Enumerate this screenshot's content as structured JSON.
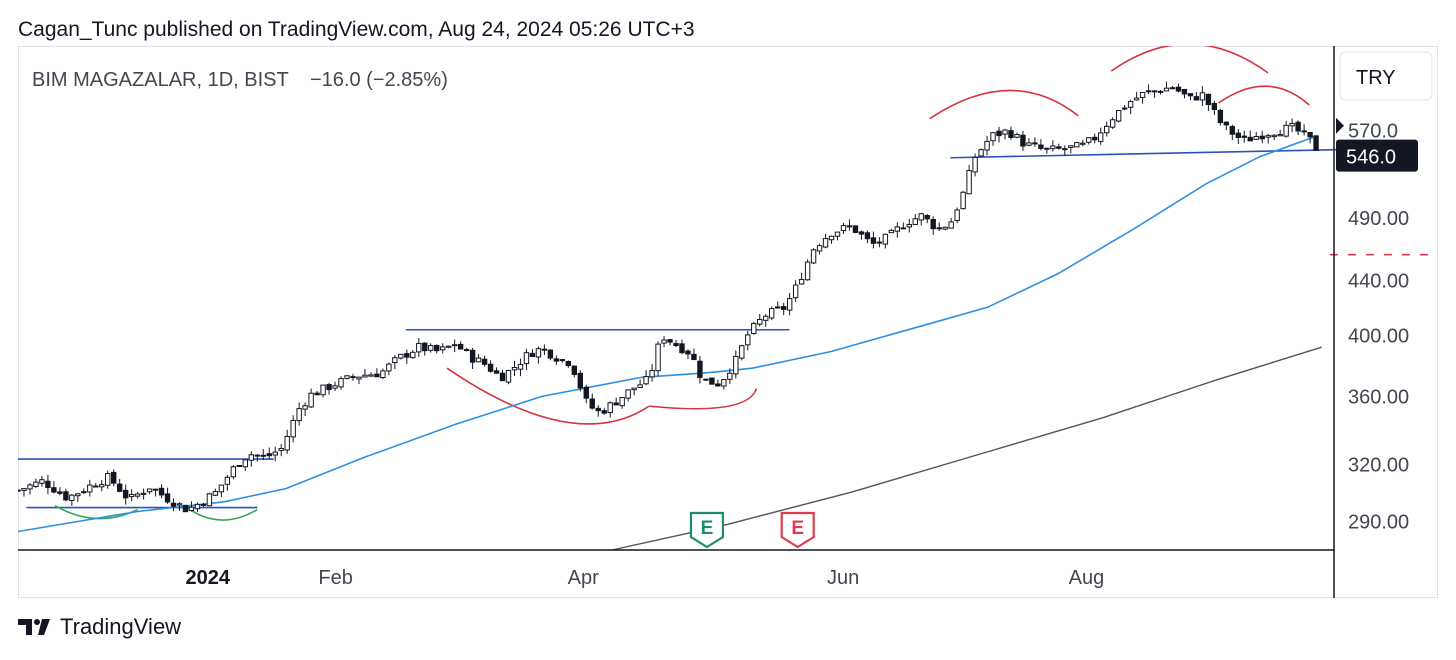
{
  "header": {
    "published": "Cagan_Tunc published on TradingView.com, Aug 24, 2024 05:26 UTC+3"
  },
  "symbol": {
    "text": "BIM MAGAZALAR, 1D, BIST",
    "change": "−16.0 (−2.85%)"
  },
  "currency_button": "TRY",
  "footer": {
    "brand": "TradingView"
  },
  "earnings": [
    {
      "label": "E",
      "date": "2024-05-01",
      "color": "#1e8a6e"
    },
    {
      "label": "E",
      "date": "2024-05-23",
      "color": "#e03a4e"
    }
  ],
  "chart_data": {
    "type": "candlestick",
    "x_axis": {
      "range": [
        "2023-11-16",
        "2024-09-30"
      ],
      "ticks": [
        {
          "label": "2024",
          "date": "2024-01-01",
          "bold": true
        },
        {
          "label": "Feb",
          "date": "2024-02-01"
        },
        {
          "label": "Apr",
          "date": "2024-04-01"
        },
        {
          "label": "Jun",
          "date": "2024-06-03"
        },
        {
          "label": "Aug",
          "date": "2024-08-01"
        }
      ]
    },
    "y_axis": {
      "scale": "log",
      "range": [
        276,
        660
      ],
      "ticks": [
        {
          "label": "570.0",
          "value": 570
        },
        {
          "label": "490.00",
          "value": 490
        },
        {
          "label": "440.00",
          "value": 440
        },
        {
          "label": "400.00",
          "value": 400
        },
        {
          "label": "360.00",
          "value": 360
        },
        {
          "label": "320.00",
          "value": 320
        },
        {
          "label": "290.00",
          "value": 290
        }
      ],
      "current_price": {
        "label": "546.0",
        "value": 546
      }
    },
    "price_path": [
      [
        "2023-11-16",
        306
      ],
      [
        "2023-11-22",
        311
      ],
      [
        "2023-11-28",
        302
      ],
      [
        "2023-12-04",
        309
      ],
      [
        "2023-12-08",
        313
      ],
      [
        "2023-12-13",
        301
      ],
      [
        "2023-12-18",
        308
      ],
      [
        "2023-12-22",
        302
      ],
      [
        "2023-12-27",
        296
      ],
      [
        "2023-12-29",
        298
      ],
      [
        "2024-01-03",
        305
      ],
      [
        "2024-01-08",
        320
      ],
      [
        "2024-01-11",
        326
      ],
      [
        "2024-01-15",
        324
      ],
      [
        "2024-01-19",
        329
      ],
      [
        "2024-01-23",
        352
      ],
      [
        "2024-01-26",
        361
      ],
      [
        "2024-02-01",
        368
      ],
      [
        "2024-02-06",
        373
      ],
      [
        "2024-02-12",
        375
      ],
      [
        "2024-02-16",
        384
      ],
      [
        "2024-02-21",
        392
      ],
      [
        "2024-02-26",
        389
      ],
      [
        "2024-03-01",
        394
      ],
      [
        "2024-03-05",
        385
      ],
      [
        "2024-03-08",
        381
      ],
      [
        "2024-03-12",
        372
      ],
      [
        "2024-03-15",
        378
      ],
      [
        "2024-03-19",
        388
      ],
      [
        "2024-03-22",
        391
      ],
      [
        "2024-03-27",
        383
      ],
      [
        "2024-03-29",
        382
      ],
      [
        "2024-04-02",
        355
      ],
      [
        "2024-04-05",
        350
      ],
      [
        "2024-04-09",
        357
      ],
      [
        "2024-04-13",
        365
      ],
      [
        "2024-04-17",
        371
      ],
      [
        "2024-04-20",
        400
      ],
      [
        "2024-04-24",
        393
      ],
      [
        "2024-04-27",
        388
      ],
      [
        "2024-04-30",
        370
      ],
      [
        "2024-05-04",
        368
      ],
      [
        "2024-05-08",
        383
      ],
      [
        "2024-05-11",
        401
      ],
      [
        "2024-05-15",
        414
      ],
      [
        "2024-05-20",
        420
      ],
      [
        "2024-05-23",
        437
      ],
      [
        "2024-05-27",
        466
      ],
      [
        "2024-05-31",
        478
      ],
      [
        "2024-06-05",
        483
      ],
      [
        "2024-06-10",
        468
      ],
      [
        "2024-06-14",
        474
      ],
      [
        "2024-06-18",
        486
      ],
      [
        "2024-06-22",
        492
      ],
      [
        "2024-06-26",
        481
      ],
      [
        "2024-06-29",
        486
      ],
      [
        "2024-07-02",
        510
      ],
      [
        "2024-07-05",
        545
      ],
      [
        "2024-07-09",
        565
      ],
      [
        "2024-07-13",
        570
      ],
      [
        "2024-07-17",
        557
      ],
      [
        "2024-07-22",
        551
      ],
      [
        "2024-07-26",
        552
      ],
      [
        "2024-07-31",
        555
      ],
      [
        "2024-08-03",
        563
      ],
      [
        "2024-08-07",
        582
      ],
      [
        "2024-08-11",
        598
      ],
      [
        "2024-08-15",
        608
      ],
      [
        "2024-08-19",
        612
      ],
      [
        "2024-08-22",
        615
      ],
      [
        "2024-08-26",
        602
      ],
      [
        "2024-08-29",
        607
      ],
      [
        "2024-09-03",
        575
      ],
      [
        "2024-09-08",
        560
      ],
      [
        "2024-09-12",
        566
      ],
      [
        "2024-09-16",
        570
      ],
      [
        "2024-09-20",
        573
      ],
      [
        "2024-09-24",
        562
      ],
      [
        "2024-09-27",
        546
      ]
    ],
    "ma_fast": [
      [
        "2023-11-16",
        285
      ],
      [
        "2023-12-15",
        295
      ],
      [
        "2024-01-05",
        300
      ],
      [
        "2024-01-20",
        307
      ],
      [
        "2024-02-08",
        324
      ],
      [
        "2024-03-01",
        343
      ],
      [
        "2024-03-22",
        360
      ],
      [
        "2024-04-15",
        372
      ],
      [
        "2024-05-01",
        375
      ],
      [
        "2024-05-12",
        378
      ],
      [
        "2024-05-31",
        389
      ],
      [
        "2024-06-20",
        405
      ],
      [
        "2024-07-08",
        420
      ],
      [
        "2024-07-25",
        445
      ],
      [
        "2024-08-12",
        480
      ],
      [
        "2024-08-30",
        520
      ],
      [
        "2024-09-12",
        545
      ],
      [
        "2024-09-26",
        565
      ]
    ],
    "ma_slow": [
      [
        "2024-04-08",
        276
      ],
      [
        "2024-05-05",
        288
      ],
      [
        "2024-06-05",
        305
      ],
      [
        "2024-07-05",
        325
      ],
      [
        "2024-08-05",
        347
      ],
      [
        "2024-09-01",
        370
      ],
      [
        "2024-09-27",
        392
      ]
    ]
  }
}
